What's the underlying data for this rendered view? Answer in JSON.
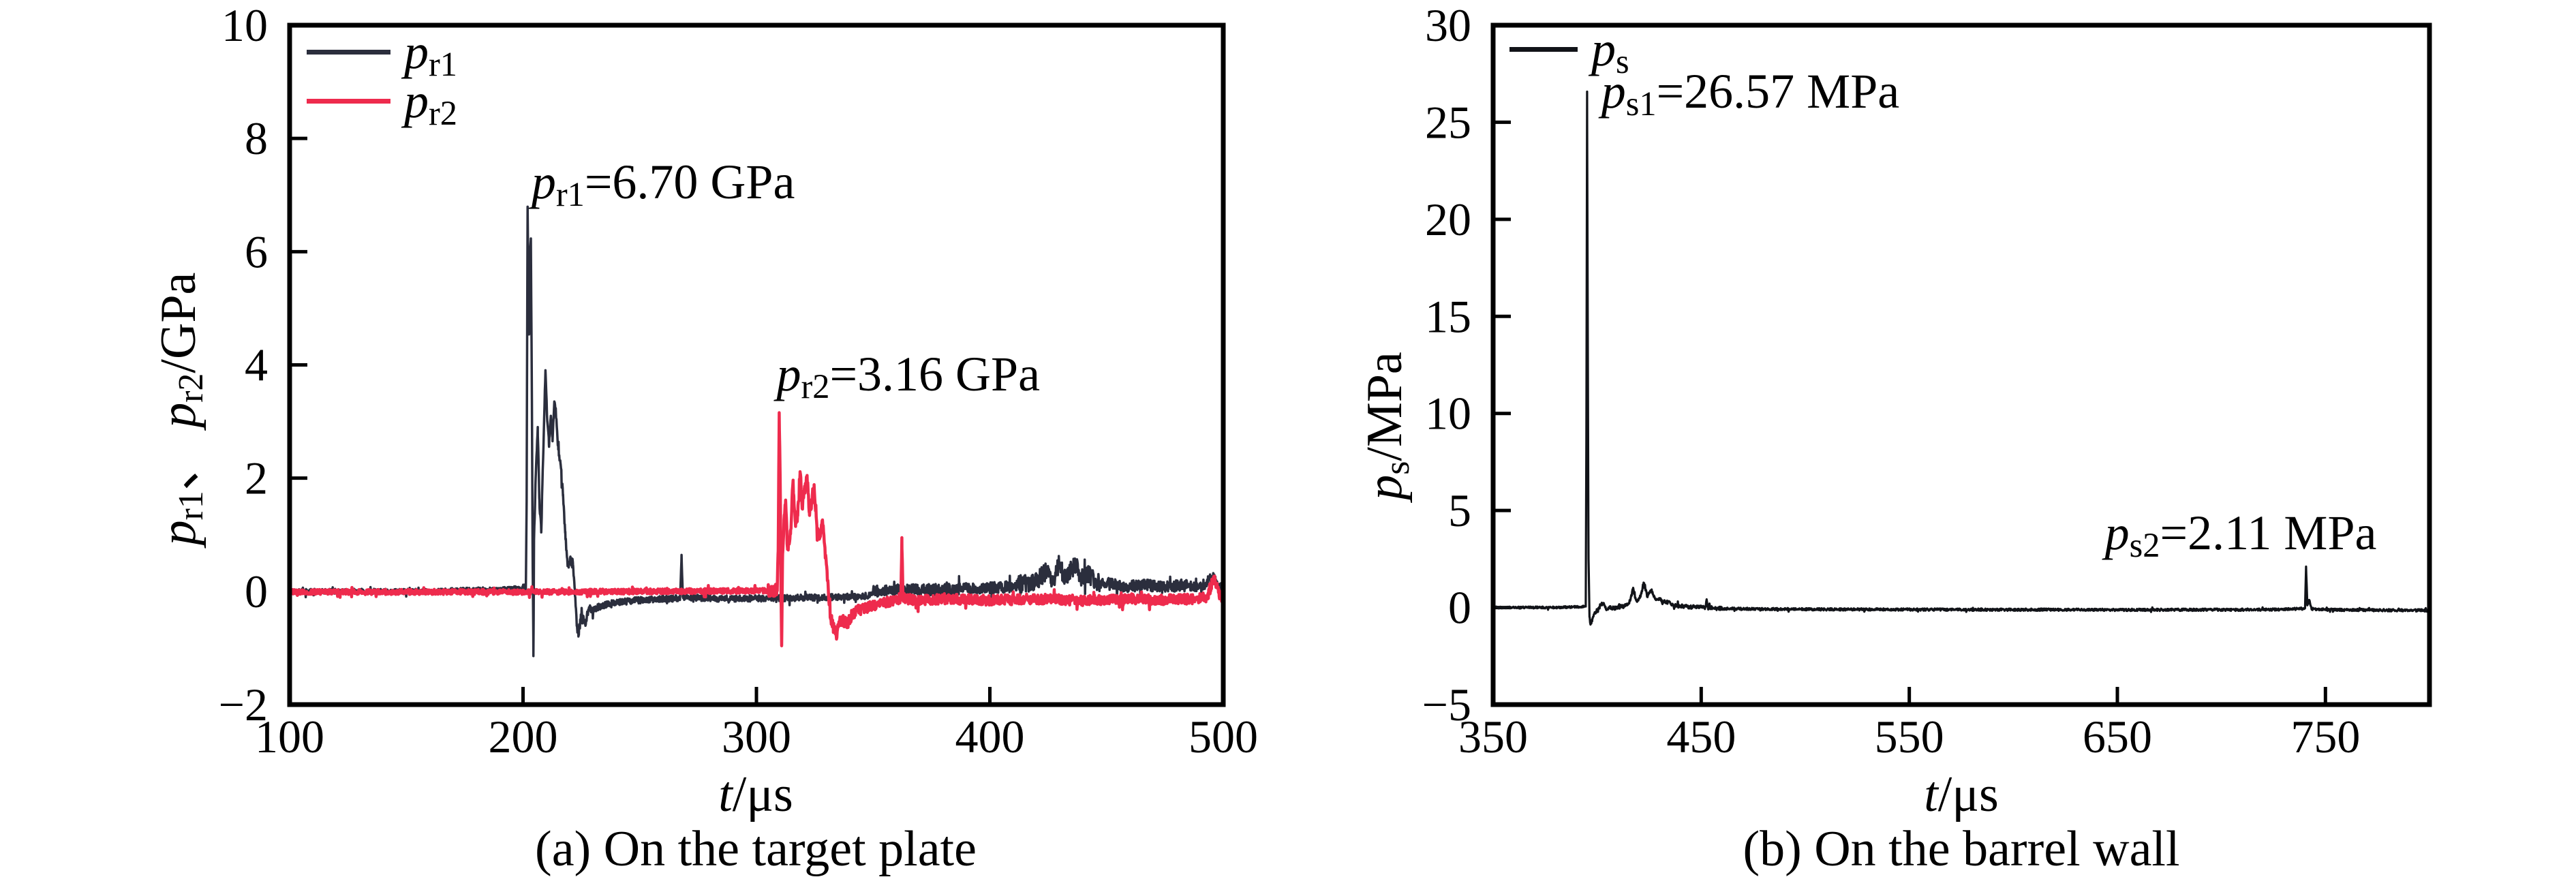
{
  "figure": {
    "description": "Pressure-time histories figure with two panels",
    "background": "#ffffff",
    "axis_color": "#000000"
  },
  "chart_data": [
    {
      "type": "line",
      "panel": "a",
      "caption": "(a) On the target plate",
      "xlabel_text": "t/μs",
      "ylabel_text": "p_r1、 p_r2/GPa",
      "xlabel": [
        {
          "t": "t",
          "i": 1
        },
        {
          "t": "/μs"
        }
      ],
      "ylabel": [
        {
          "t": "p",
          "i": 1
        },
        {
          "t": "r1",
          "s": 1
        },
        {
          "t": "、 "
        },
        {
          "t": "p",
          "i": 1
        },
        {
          "t": "r2",
          "s": 1
        },
        {
          "t": "/GPa"
        }
      ],
      "xlim": [
        100,
        500
      ],
      "ylim": [
        -2,
        10
      ],
      "xticks": [
        100,
        200,
        300,
        400,
        500
      ],
      "yticks": [
        -2,
        0,
        2,
        4,
        6,
        8,
        10
      ],
      "grid": false,
      "legend_position": "top-left-inside",
      "legend": [
        {
          "name": "p_r1",
          "color": "#2b2e3d",
          "label": [
            {
              "t": "p",
              "i": 1
            },
            {
              "t": "r1",
              "s": 1
            }
          ]
        },
        {
          "name": "p_r2",
          "color": "#ee2b4d",
          "label": [
            {
              "t": "p",
              "i": 1
            },
            {
              "t": "r2",
              "s": 1
            }
          ]
        }
      ],
      "annotations": [
        {
          "anchor_t": 203.6,
          "anchor_v": 6.92,
          "value": "6.70 GPa",
          "segments": [
            {
              "t": "p",
              "i": 1
            },
            {
              "t": "r1",
              "s": 1
            },
            {
              "t": "=6.70 GPa"
            }
          ]
        },
        {
          "anchor_t": 308.6,
          "anchor_v": 3.52,
          "value": "3.16 GPa",
          "segments": [
            {
              "t": "p",
              "i": 1
            },
            {
              "t": "r2",
              "s": 1
            },
            {
              "t": "=3.16 GPa"
            }
          ]
        }
      ],
      "series": [
        {
          "name": "p_r1",
          "color": "#2b2e3d",
          "width": 3.5,
          "peak": {
            "t": 202,
            "v": 6.7
          },
          "keypoints": [
            [
              100,
              0
            ],
            [
              160,
              0
            ],
            [
              201.2,
              0.05
            ],
            [
              201.55,
              1.6
            ],
            [
              201.95,
              6.78
            ],
            [
              202.35,
              5.1
            ],
            [
              202.6,
              4.55
            ],
            [
              202.95,
              6.05
            ],
            [
              203.35,
              6.22
            ],
            [
              203.8,
              3.4
            ],
            [
              204.15,
              0.4
            ],
            [
              204.45,
              -1.15
            ],
            [
              204.7,
              0.9
            ],
            [
              205.4,
              2.0
            ],
            [
              206.3,
              2.9
            ],
            [
              207.0,
              1.6
            ],
            [
              207.8,
              1.05
            ],
            [
              208.6,
              2.35
            ],
            [
              209.6,
              3.9
            ],
            [
              210.4,
              3.0
            ],
            [
              211.1,
              2.6
            ],
            [
              211.9,
              3.1
            ],
            [
              212.6,
              2.7
            ],
            [
              213.4,
              3.35
            ],
            [
              214.3,
              3.05
            ],
            [
              215.1,
              2.5
            ],
            [
              216.1,
              2.25
            ],
            [
              217.1,
              1.7
            ],
            [
              218.1,
              1.05
            ],
            [
              219.1,
              0.45
            ],
            [
              220.2,
              0.58
            ],
            [
              221.4,
              0.48
            ],
            [
              222.2,
              0.05
            ],
            [
              223.0,
              -0.6
            ],
            [
              223.8,
              -0.72
            ],
            [
              225.0,
              -0.45
            ],
            [
              226.5,
              -0.55
            ],
            [
              228.5,
              -0.32
            ],
            [
              232,
              -0.22
            ],
            [
              238,
              -0.15
            ],
            [
              248,
              -0.1
            ],
            [
              267.3,
              -0.06
            ],
            [
              267.9,
              0.66
            ],
            [
              268.5,
              -0.04
            ],
            [
              285,
              -0.07
            ],
            [
              310,
              -0.06
            ],
            [
              335,
              -0.04
            ],
            [
              360,
              0.0
            ],
            [
              385,
              0.02
            ],
            [
              410,
              0.06
            ],
            [
              419,
              0.1
            ],
            [
              424,
              0.28
            ],
            [
              427,
              0.12
            ],
            [
              429.5,
              0.42
            ],
            [
              432,
              0.2
            ],
            [
              434.5,
              0.3
            ],
            [
              437,
              0.45
            ],
            [
              439,
              0.18
            ],
            [
              442,
              0.25
            ],
            [
              446,
              0.1
            ],
            [
              452,
              0.12
            ],
            [
              458,
              0.06
            ],
            [
              466,
              0.1
            ],
            [
              474,
              0.05
            ],
            [
              482,
              0.09
            ],
            [
              490,
              0.05
            ],
            [
              495.5,
              0.22
            ],
            [
              498,
              0.08
            ],
            [
              500,
              0.05
            ]
          ],
          "noise": [
            [
              100,
              200,
              0.045,
              0
            ],
            [
              200,
              230,
              0.09,
              0
            ],
            [
              230,
              350,
              0.055,
              -0.06
            ],
            [
              350,
              412,
              0.1,
              0.02
            ],
            [
              412,
              448,
              0.16,
              0.06
            ],
            [
              448,
              500,
              0.1,
              0.02
            ]
          ]
        },
        {
          "name": "p_r2",
          "color": "#ee2b4d",
          "width": 4.5,
          "peak": {
            "t": 310,
            "v": 3.16
          },
          "keypoints": [
            [
              100,
              0
            ],
            [
              200,
              0
            ],
            [
              308.9,
              0.02
            ],
            [
              309.3,
              0.7
            ],
            [
              309.75,
              3.16
            ],
            [
              310.2,
              1.9
            ],
            [
              310.55,
              -0.2
            ],
            [
              310.8,
              -0.95
            ],
            [
              311.15,
              0.5
            ],
            [
              311.8,
              1.25
            ],
            [
              312.5,
              1.6
            ],
            [
              313.3,
              0.75
            ],
            [
              314.6,
              1.0
            ],
            [
              315.7,
              1.95
            ],
            [
              316.7,
              1.2
            ],
            [
              317.7,
              1.35
            ],
            [
              318.7,
              2.1
            ],
            [
              319.7,
              1.5
            ],
            [
              320.7,
              1.8
            ],
            [
              321.7,
              2.05
            ],
            [
              322.7,
              1.4
            ],
            [
              323.7,
              1.6
            ],
            [
              324.7,
              1.88
            ],
            [
              325.9,
              1.15
            ],
            [
              327.1,
              0.95
            ],
            [
              328.3,
              1.25
            ],
            [
              329.5,
              0.6
            ],
            [
              330.6,
              0.2
            ],
            [
              331.6,
              -0.45
            ],
            [
              332.9,
              -0.62
            ],
            [
              334.2,
              -0.78
            ],
            [
              336.2,
              -0.5
            ],
            [
              338.7,
              -0.58
            ],
            [
              341.2,
              -0.38
            ],
            [
              345.2,
              -0.28
            ],
            [
              350,
              -0.22
            ],
            [
              356,
              -0.16
            ],
            [
              361.9,
              -0.1
            ],
            [
              362.3,
              0.95
            ],
            [
              362.75,
              -0.08
            ],
            [
              368,
              -0.14
            ],
            [
              380,
              -0.1
            ],
            [
              400,
              -0.13
            ],
            [
              420,
              -0.1
            ],
            [
              440,
              -0.13
            ],
            [
              460,
              -0.1
            ],
            [
              480,
              -0.12
            ],
            [
              493,
              -0.08
            ],
            [
              496,
              0.26
            ],
            [
              498.5,
              -0.05
            ],
            [
              500,
              -0.08
            ]
          ],
          "noise": [
            [
              100,
              305,
              0.045,
              -0.01
            ],
            [
              305,
              344,
              0.11,
              0
            ],
            [
              344,
              500,
              0.09,
              -0.03
            ]
          ]
        }
      ]
    },
    {
      "type": "line",
      "panel": "b",
      "caption": "(b) On the barrel wall",
      "xlabel_text": "t/μs",
      "ylabel_text": "p_s/MPa",
      "xlabel": [
        {
          "t": "t",
          "i": 1
        },
        {
          "t": "/μs"
        }
      ],
      "ylabel": [
        {
          "t": "p",
          "i": 1
        },
        {
          "t": "s",
          "s": 1
        },
        {
          "t": "/MPa"
        }
      ],
      "xlim": [
        350,
        800
      ],
      "ylim": [
        -5,
        30
      ],
      "xticks": [
        350,
        450,
        550,
        650,
        750
      ],
      "yticks": [
        -5,
        0,
        5,
        10,
        15,
        20,
        25,
        30
      ],
      "grid": false,
      "legend_position": "top-left-inside",
      "legend": [
        {
          "name": "p_s",
          "color": "#111318",
          "label": [
            {
              "t": "p",
              "i": 1
            },
            {
              "t": "s",
              "s": 1
            }
          ]
        }
      ],
      "annotations": [
        {
          "anchor_t": 402.0,
          "anchor_v": 25.68,
          "value": "26.57 MPa",
          "segments": [
            {
              "t": "p",
              "i": 1
            },
            {
              "t": "s1",
              "s": 1
            },
            {
              "t": "=26.57 MPa"
            }
          ]
        },
        {
          "anchor_t": 644.0,
          "anchor_v": 2.95,
          "value": "2.11 MPa",
          "segments": [
            {
              "t": "p",
              "i": 1
            },
            {
              "t": "s2",
              "s": 1
            },
            {
              "t": "=2.11 MPa"
            }
          ]
        }
      ],
      "series": [
        {
          "name": "p_s",
          "color": "#111318",
          "width": 3.2,
          "peak": {
            "t": 395,
            "v": 26.57
          },
          "keypoints": [
            [
              350,
              0
            ],
            [
              380,
              0
            ],
            [
              394.5,
              0.05
            ],
            [
              394.85,
              10
            ],
            [
              395.15,
              26.57
            ],
            [
              395.5,
              14
            ],
            [
              395.85,
              2.5
            ],
            [
              396.3,
              -0.5
            ],
            [
              396.8,
              -0.88
            ],
            [
              397.7,
              -0.6
            ],
            [
              398.7,
              -0.3
            ],
            [
              400,
              -0.22
            ],
            [
              401.5,
              0.1
            ],
            [
              403,
              0.22
            ],
            [
              404.5,
              -0.12
            ],
            [
              406,
              0.06
            ],
            [
              408,
              -0.06
            ],
            [
              410,
              0.02
            ],
            [
              413,
              0.05
            ],
            [
              415.5,
              0.3
            ],
            [
              416.5,
              0.62
            ],
            [
              417.3,
              1.02
            ],
            [
              418.2,
              0.5
            ],
            [
              419.2,
              0.3
            ],
            [
              420.3,
              0.5
            ],
            [
              421.3,
              0.72
            ],
            [
              422.3,
              1.28
            ],
            [
              423.2,
              0.9
            ],
            [
              424.2,
              0.55
            ],
            [
              425.2,
              0.75
            ],
            [
              426.2,
              0.92
            ],
            [
              427.2,
              0.55
            ],
            [
              428.3,
              0.4
            ],
            [
              429.8,
              0.48
            ],
            [
              431.5,
              0.25
            ],
            [
              433.5,
              0.32
            ],
            [
              435.5,
              0.15
            ],
            [
              438.5,
              0.1
            ],
            [
              442,
              0.06
            ],
            [
              447,
              0.02
            ],
            [
              452.1,
              0.02
            ],
            [
              452.6,
              0.42
            ],
            [
              453.2,
              0.0
            ],
            [
              458,
              -0.04
            ],
            [
              470,
              -0.06
            ],
            [
              500,
              -0.08
            ],
            [
              540,
              -0.09
            ],
            [
              580,
              -0.1
            ],
            [
              620,
              -0.1
            ],
            [
              660,
              -0.11
            ],
            [
              700,
              -0.1
            ],
            [
              725,
              -0.1
            ],
            [
              740.2,
              -0.04
            ],
            [
              740.7,
              2.11
            ],
            [
              741.3,
              0.12
            ],
            [
              742.3,
              0.38
            ],
            [
              743.3,
              -0.06
            ],
            [
              750,
              -0.1
            ],
            [
              770,
              -0.12
            ],
            [
              800,
              -0.14
            ]
          ],
          "noise": [
            [
              350,
              394,
              0.05,
              0
            ],
            [
              396,
              460,
              0.1,
              0
            ],
            [
              460,
              800,
              0.06,
              -0.01
            ]
          ]
        }
      ]
    }
  ]
}
